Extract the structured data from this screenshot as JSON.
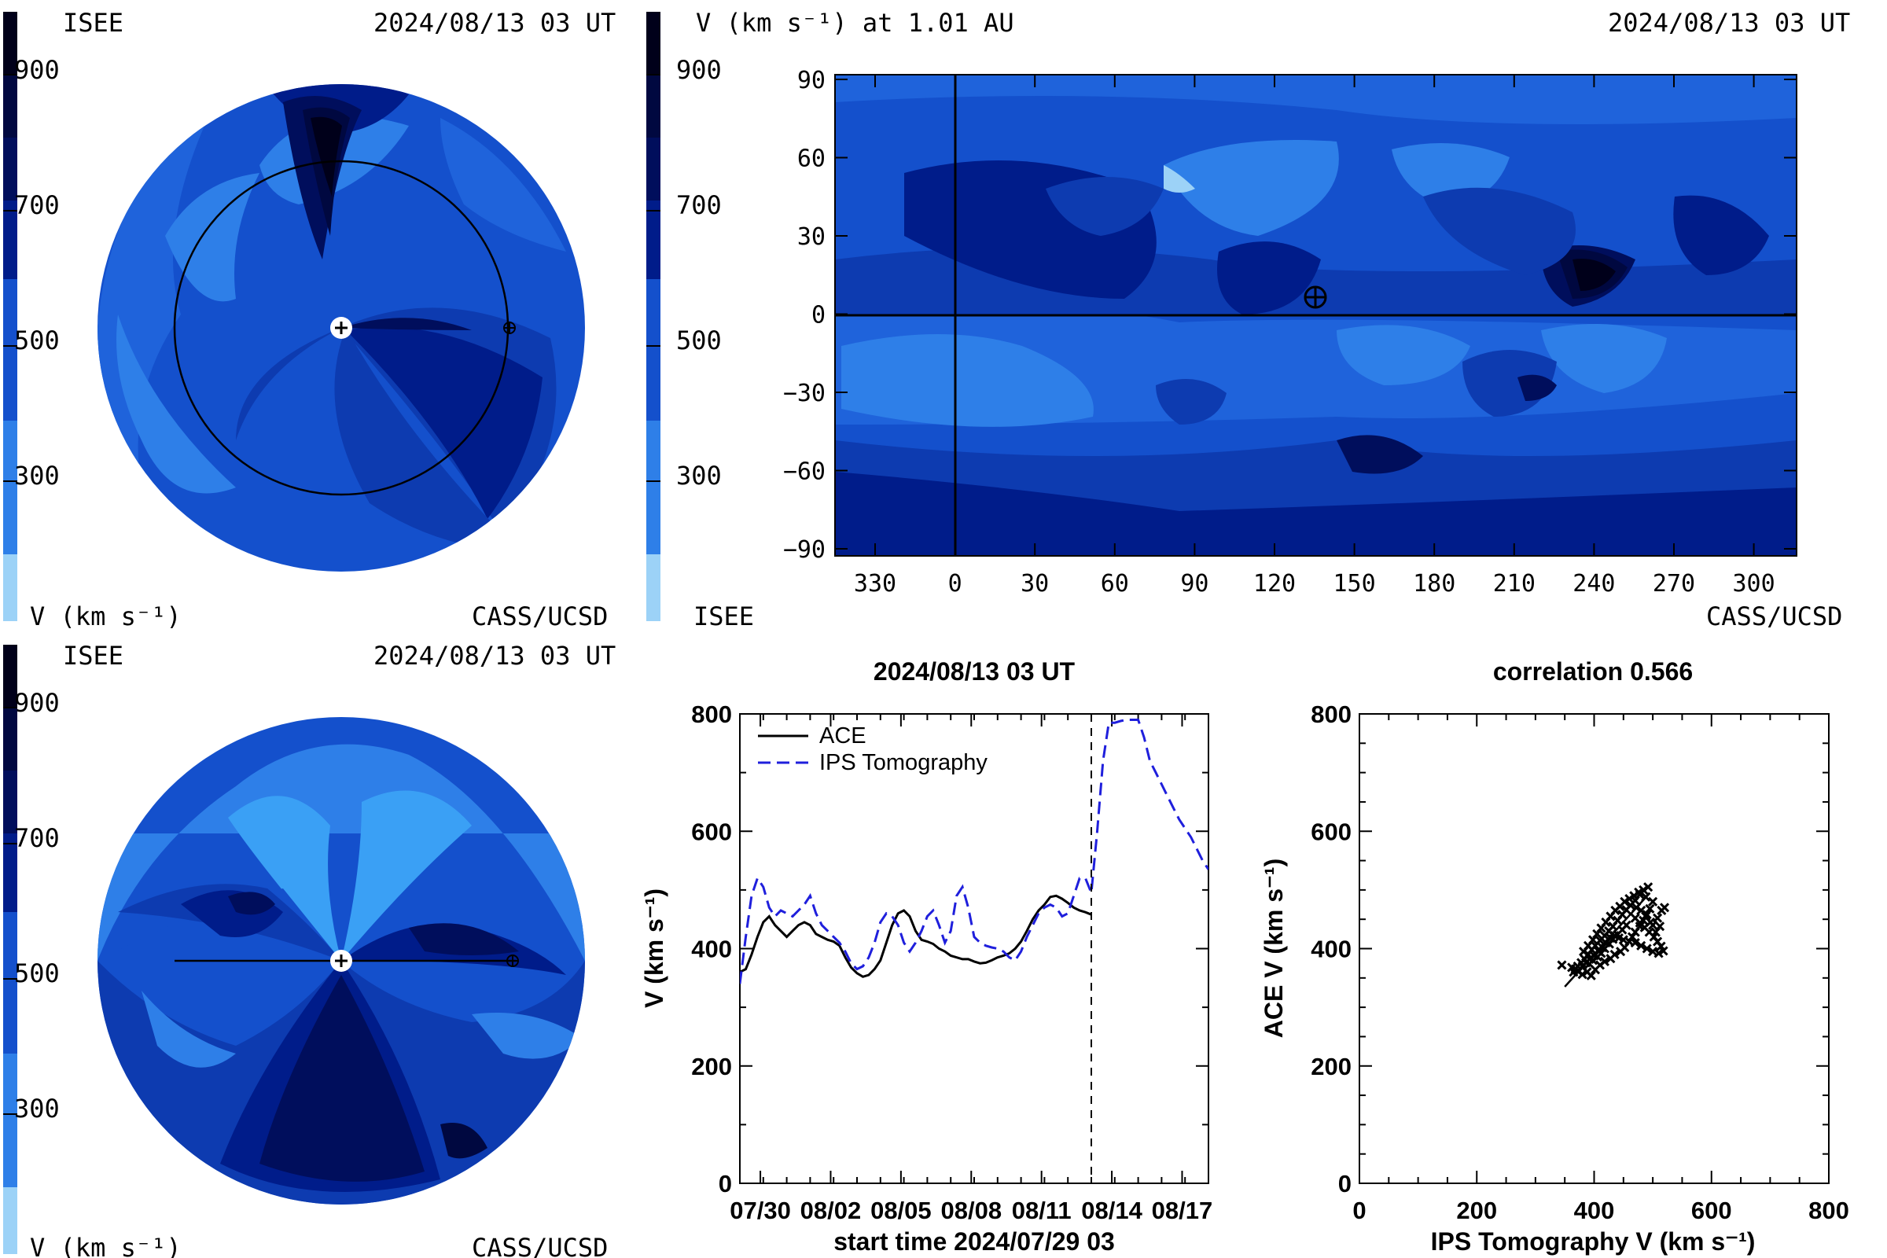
{
  "colors": {
    "v900": "#00001a",
    "v850": "#000840",
    "v800": "#000e5c",
    "v750": "#00146e",
    "v700": "#001c8a",
    "v600": "#0d3bb0",
    "v500": "#1450cc",
    "v450": "#1f63db",
    "v400": "#2e7fe8",
    "v300": "#3aa0f5",
    "v200": "#9cd2f7",
    "ace": "#000000",
    "ips": "#1f1fdc"
  },
  "panel_tl": {
    "left_label": "ISEE",
    "timestamp": "2024/08/13 03 UT",
    "bottom_left": "V (km s⁻¹)",
    "bottom_right": "CASS/UCSD",
    "colorbar_ticks": [
      "900",
      "700",
      "500",
      "300"
    ]
  },
  "panel_tr": {
    "title": "V (km s⁻¹) at 1.01 AU",
    "timestamp": "2024/08/13 03 UT",
    "bottom_left": "ISEE",
    "bottom_right": "CASS/UCSD",
    "colorbar_ticks": [
      "900",
      "700",
      "500",
      "300"
    ],
    "yticks": [
      "90",
      "60",
      "30",
      "0",
      "−30",
      "−60",
      "−90"
    ],
    "xticks": [
      "330",
      "0",
      "30",
      "60",
      "90",
      "120",
      "150",
      "180",
      "210",
      "240",
      "270",
      "300"
    ]
  },
  "panel_bl": {
    "left_label": "ISEE",
    "timestamp": "2024/08/13 03 UT",
    "bottom_left": "V (km s⁻¹)",
    "bottom_right": "CASS/UCSD",
    "colorbar_ticks": [
      "900",
      "700",
      "500",
      "300"
    ]
  },
  "chart_data": [
    {
      "type": "line",
      "title": "2024/08/13 03 UT",
      "xlabel": "start time 2024/07/29 03",
      "ylabel": "V (km s⁻¹)",
      "ylim": [
        0,
        800
      ],
      "xlim_days": [
        0,
        20
      ],
      "x_ticks": [
        "07/30",
        "08/02",
        "08/05",
        "08/08",
        "08/11",
        "08/14",
        "08/17"
      ],
      "y_ticks": [
        "800",
        "600",
        "400",
        "200",
        "0"
      ],
      "legend_placement": "top-left",
      "vline_x": "08/13 03",
      "series": [
        {
          "name": "ACE",
          "style": "solid",
          "color": "#000000",
          "x": [
            "07/29 03",
            "07/29 09",
            "07/29 15",
            "07/29 21",
            "07/30 03",
            "07/30 09",
            "07/30 15",
            "07/30 21",
            "07/31 03",
            "07/31 09",
            "07/31 15",
            "07/31 21",
            "08/01 03",
            "08/01 09",
            "08/01 15",
            "08/01 21",
            "08/02 03",
            "08/02 09",
            "08/02 15",
            "08/02 21",
            "08/03 03",
            "08/03 09",
            "08/03 15",
            "08/03 21",
            "08/04 03",
            "08/04 09",
            "08/04 15",
            "08/04 21",
            "08/05 03",
            "08/05 09",
            "08/05 15",
            "08/05 21",
            "08/06 03",
            "08/06 09",
            "08/06 15",
            "08/06 21",
            "08/07 03",
            "08/07 09",
            "08/07 15",
            "08/07 21",
            "08/08 03",
            "08/08 09",
            "08/08 15",
            "08/08 21",
            "08/09 03",
            "08/09 09",
            "08/09 15",
            "08/09 21",
            "08/10 03",
            "08/10 09",
            "08/10 15",
            "08/10 21",
            "08/11 03",
            "08/11 09",
            "08/11 15",
            "08/11 21",
            "08/12 03",
            "08/12 09",
            "08/12 15",
            "08/12 21",
            "08/13 03"
          ],
          "values": [
            360,
            365,
            390,
            420,
            445,
            455,
            440,
            430,
            420,
            430,
            440,
            445,
            440,
            425,
            420,
            415,
            412,
            405,
            385,
            368,
            358,
            352,
            355,
            365,
            380,
            410,
            440,
            460,
            465,
            455,
            430,
            415,
            412,
            408,
            400,
            395,
            388,
            385,
            382,
            382,
            378,
            375,
            376,
            380,
            385,
            388,
            392,
            400,
            412,
            430,
            450,
            465,
            475,
            488,
            490,
            485,
            478,
            470,
            465,
            462,
            458
          ]
        },
        {
          "name": "IPS Tomography",
          "style": "dashed",
          "color": "#1f1fdc",
          "x": [
            "07/29 03",
            "07/29 09",
            "07/29 15",
            "07/29 21",
            "07/30 03",
            "07/30 09",
            "07/30 15",
            "07/30 21",
            "07/31 03",
            "07/31 09",
            "07/31 15",
            "07/31 21",
            "08/01 03",
            "08/01 09",
            "08/01 15",
            "08/01 21",
            "08/02 03",
            "08/02 09",
            "08/02 15",
            "08/02 21",
            "08/03 03",
            "08/03 09",
            "08/03 15",
            "08/03 21",
            "08/04 03",
            "08/04 09",
            "08/04 15",
            "08/04 21",
            "08/05 03",
            "08/05 09",
            "08/05 15",
            "08/05 21",
            "08/06 03",
            "08/06 09",
            "08/06 15",
            "08/06 21",
            "08/07 03",
            "08/07 09",
            "08/07 15",
            "08/07 21",
            "08/08 03",
            "08/08 09",
            "08/08 15",
            "08/08 21",
            "08/09 03",
            "08/09 09",
            "08/09 15",
            "08/09 21",
            "08/10 03",
            "08/10 09",
            "08/10 15",
            "08/10 21",
            "08/11 03",
            "08/11 09",
            "08/11 15",
            "08/11 21",
            "08/12 03",
            "08/12 09",
            "08/12 15",
            "08/12 21",
            "08/13 03",
            "08/13 09",
            "08/13 15",
            "08/13 21",
            "08/14 03",
            "08/14 09",
            "08/14 15",
            "08/14 21",
            "08/15 03",
            "08/15 09",
            "08/15 15",
            "08/15 21",
            "08/16 03",
            "08/16 09",
            "08/16 15",
            "08/16 21",
            "08/17 03",
            "08/17 09",
            "08/17 15",
            "08/17 21",
            "08/18 03"
          ],
          "values": [
            340,
            420,
            490,
            520,
            505,
            470,
            455,
            465,
            460,
            455,
            465,
            475,
            490,
            460,
            440,
            430,
            420,
            410,
            395,
            375,
            365,
            370,
            385,
            410,
            445,
            460,
            455,
            440,
            410,
            395,
            410,
            430,
            455,
            465,
            440,
            410,
            430,
            490,
            505,
            470,
            420,
            410,
            405,
            402,
            400,
            395,
            385,
            380,
            395,
            420,
            440,
            460,
            470,
            475,
            470,
            455,
            460,
            490,
            520,
            520,
            495,
            600,
            720,
            785,
            785,
            788,
            790,
            790,
            790,
            760,
            720,
            700,
            680,
            660,
            640,
            620,
            605,
            590,
            570,
            550,
            535
          ]
        }
      ]
    },
    {
      "type": "scatter",
      "title": "correlation 0.566",
      "xlabel": "IPS Tomography V (km s⁻¹)",
      "ylabel": "ACE V (km s⁻¹)",
      "xlim": [
        0,
        800
      ],
      "ylim": [
        0,
        800
      ],
      "x_ticks": [
        "0",
        "200",
        "400",
        "600",
        "800"
      ],
      "y_ticks": [
        "800",
        "600",
        "400",
        "200",
        "0"
      ],
      "marker": "x",
      "points": [
        [
          345,
          372
        ],
        [
          362,
          368
        ],
        [
          372,
          362
        ],
        [
          380,
          356
        ],
        [
          388,
          360
        ],
        [
          395,
          354
        ],
        [
          402,
          364
        ],
        [
          410,
          372
        ],
        [
          418,
          378
        ],
        [
          428,
          383
        ],
        [
          435,
          390
        ],
        [
          445,
          395
        ],
        [
          452,
          402
        ],
        [
          460,
          412
        ],
        [
          465,
          420
        ],
        [
          470,
          428
        ],
        [
          478,
          438
        ],
        [
          484,
          448
        ],
        [
          490,
          458
        ],
        [
          495,
          468
        ],
        [
          500,
          480
        ],
        [
          488,
          488
        ],
        [
          478,
          492
        ],
        [
          470,
          482
        ],
        [
          462,
          474
        ],
        [
          455,
          466
        ],
        [
          448,
          458
        ],
        [
          440,
          448
        ],
        [
          432,
          438
        ],
        [
          425,
          430
        ],
        [
          418,
          422
        ],
        [
          410,
          414
        ],
        [
          402,
          405
        ],
        [
          396,
          398
        ],
        [
          390,
          390
        ],
        [
          384,
          382
        ],
        [
          378,
          376
        ],
        [
          372,
          370
        ],
        [
          368,
          365
        ],
        [
          365,
          360
        ],
        [
          382,
          395
        ],
        [
          390,
          405
        ],
        [
          398,
          415
        ],
        [
          405,
          425
        ],
        [
          412,
          435
        ],
        [
          420,
          445
        ],
        [
          428,
          455
        ],
        [
          436,
          465
        ],
        [
          444,
          472
        ],
        [
          452,
          480
        ],
        [
          460,
          485
        ],
        [
          468,
          490
        ],
        [
          476,
          496
        ],
        [
          484,
          500
        ],
        [
          492,
          505
        ],
        [
          470,
          452
        ],
        [
          478,
          444
        ],
        [
          486,
          436
        ],
        [
          494,
          428
        ],
        [
          502,
          420
        ],
        [
          508,
          412
        ],
        [
          514,
          404
        ],
        [
          518,
          396
        ],
        [
          510,
          392
        ],
        [
          500,
          395
        ],
        [
          490,
          400
        ],
        [
          480,
          405
        ],
        [
          470,
          410
        ],
        [
          460,
          412
        ],
        [
          450,
          415
        ],
        [
          442,
          418
        ],
        [
          435,
          422
        ],
        [
          428,
          418
        ],
        [
          420,
          410
        ],
        [
          414,
          402
        ],
        [
          408,
          395
        ],
        [
          400,
          388
        ],
        [
          392,
          382
        ],
        [
          386,
          376
        ],
        [
          380,
          370
        ],
        [
          500,
          440
        ],
        [
          508,
          452
        ],
        [
          515,
          465
        ],
        [
          520,
          470
        ],
        [
          512,
          438
        ],
        [
          505,
          428
        ],
        [
          496,
          445
        ],
        [
          488,
          455
        ],
        [
          480,
          465
        ],
        [
          472,
          470
        ],
        [
          455,
          440
        ],
        [
          448,
          432
        ],
        [
          440,
          424
        ],
        [
          432,
          416
        ],
        [
          426,
          408
        ],
        [
          418,
          400
        ],
        [
          412,
          392
        ],
        [
          406,
          386
        ],
        [
          398,
          380
        ],
        [
          392,
          374
        ]
      ],
      "fit_line": {
        "x": [
          350,
          495
        ],
        "y": [
          335,
          495
        ]
      }
    }
  ]
}
